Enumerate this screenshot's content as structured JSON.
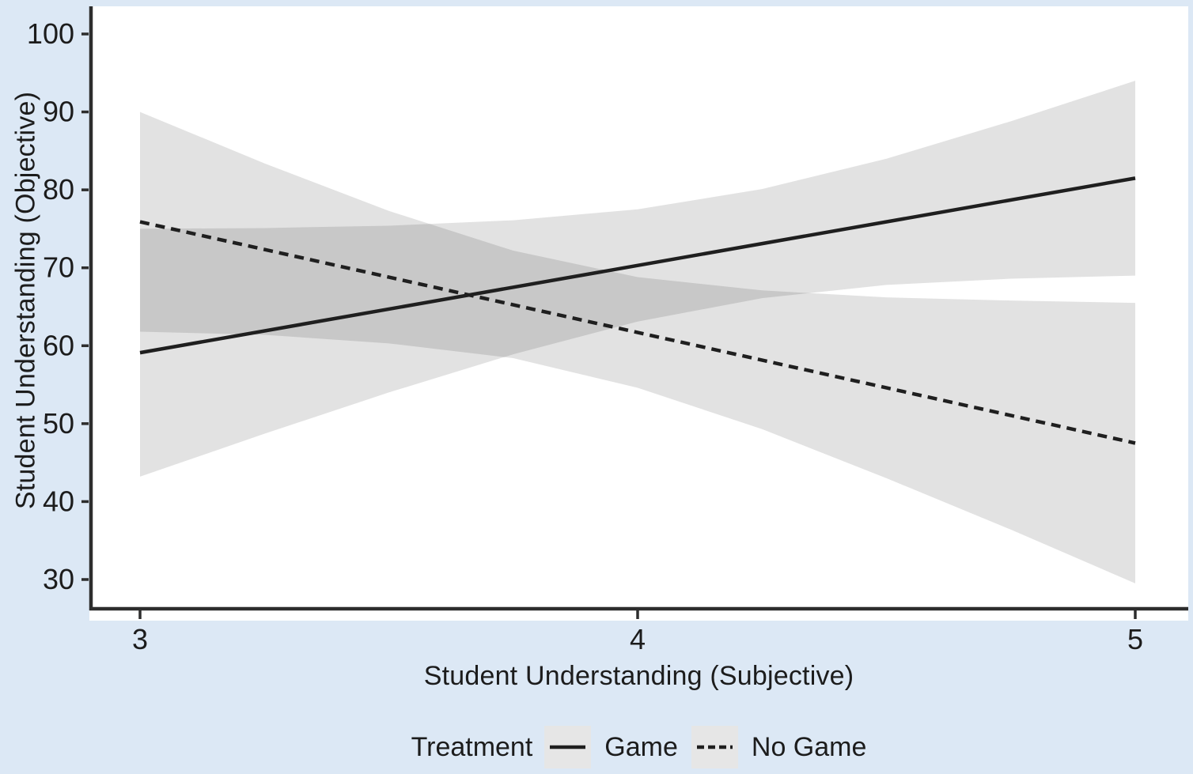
{
  "figure": {
    "background_color": "#dce8f5",
    "panel_color": "#ffffff"
  },
  "chart_data": {
    "type": "line",
    "title": "",
    "xlabel": "Student Understanding (Subjective)",
    "ylabel": "Student Understanding (Objective)",
    "xlim": [
      3,
      5
    ],
    "ylim": [
      26.5,
      103.5
    ],
    "x_ticks": [
      3,
      4,
      5
    ],
    "y_ticks": [
      100,
      90,
      80,
      70,
      60,
      50,
      40,
      30
    ],
    "grid": false,
    "legend": {
      "title": "Treatment",
      "position": "bottom",
      "entries": [
        {
          "label": "Game",
          "line_style": "solid"
        },
        {
          "label": "No Game",
          "line_style": "dashed"
        }
      ]
    },
    "series": [
      {
        "name": "Game",
        "line_style": "solid",
        "x": [
          3,
          5
        ],
        "y": [
          59.1,
          81.5
        ],
        "ci_x": [
          3,
          3.25,
          3.5,
          3.75,
          4,
          4.25,
          4.5,
          4.75,
          5
        ],
        "ci_upper": [
          75.0,
          75.1,
          75.4,
          76.1,
          77.5,
          80.1,
          84.0,
          88.8,
          94.0
        ],
        "ci_lower": [
          43.2,
          48.7,
          54.0,
          58.9,
          63.1,
          66.1,
          67.8,
          68.6,
          69.0
        ]
      },
      {
        "name": "No Game",
        "line_style": "dashed",
        "x": [
          3,
          5
        ],
        "y": [
          75.9,
          47.5
        ],
        "ci_x": [
          3,
          3.25,
          3.5,
          3.75,
          4,
          4.25,
          4.5,
          4.75,
          5
        ],
        "ci_upper": [
          90.0,
          83.4,
          77.3,
          72.2,
          68.8,
          67.1,
          66.2,
          65.8,
          65.5
        ],
        "ci_lower": [
          61.8,
          61.4,
          60.3,
          58.4,
          54.6,
          49.3,
          43.0,
          36.4,
          29.5
        ]
      }
    ],
    "colors": {
      "line": "#1f1f1f",
      "ribbon": "rgba(0,0,0,0.115)",
      "axis": "#2d2d2d",
      "tick_text": "#1c1c1c"
    }
  }
}
